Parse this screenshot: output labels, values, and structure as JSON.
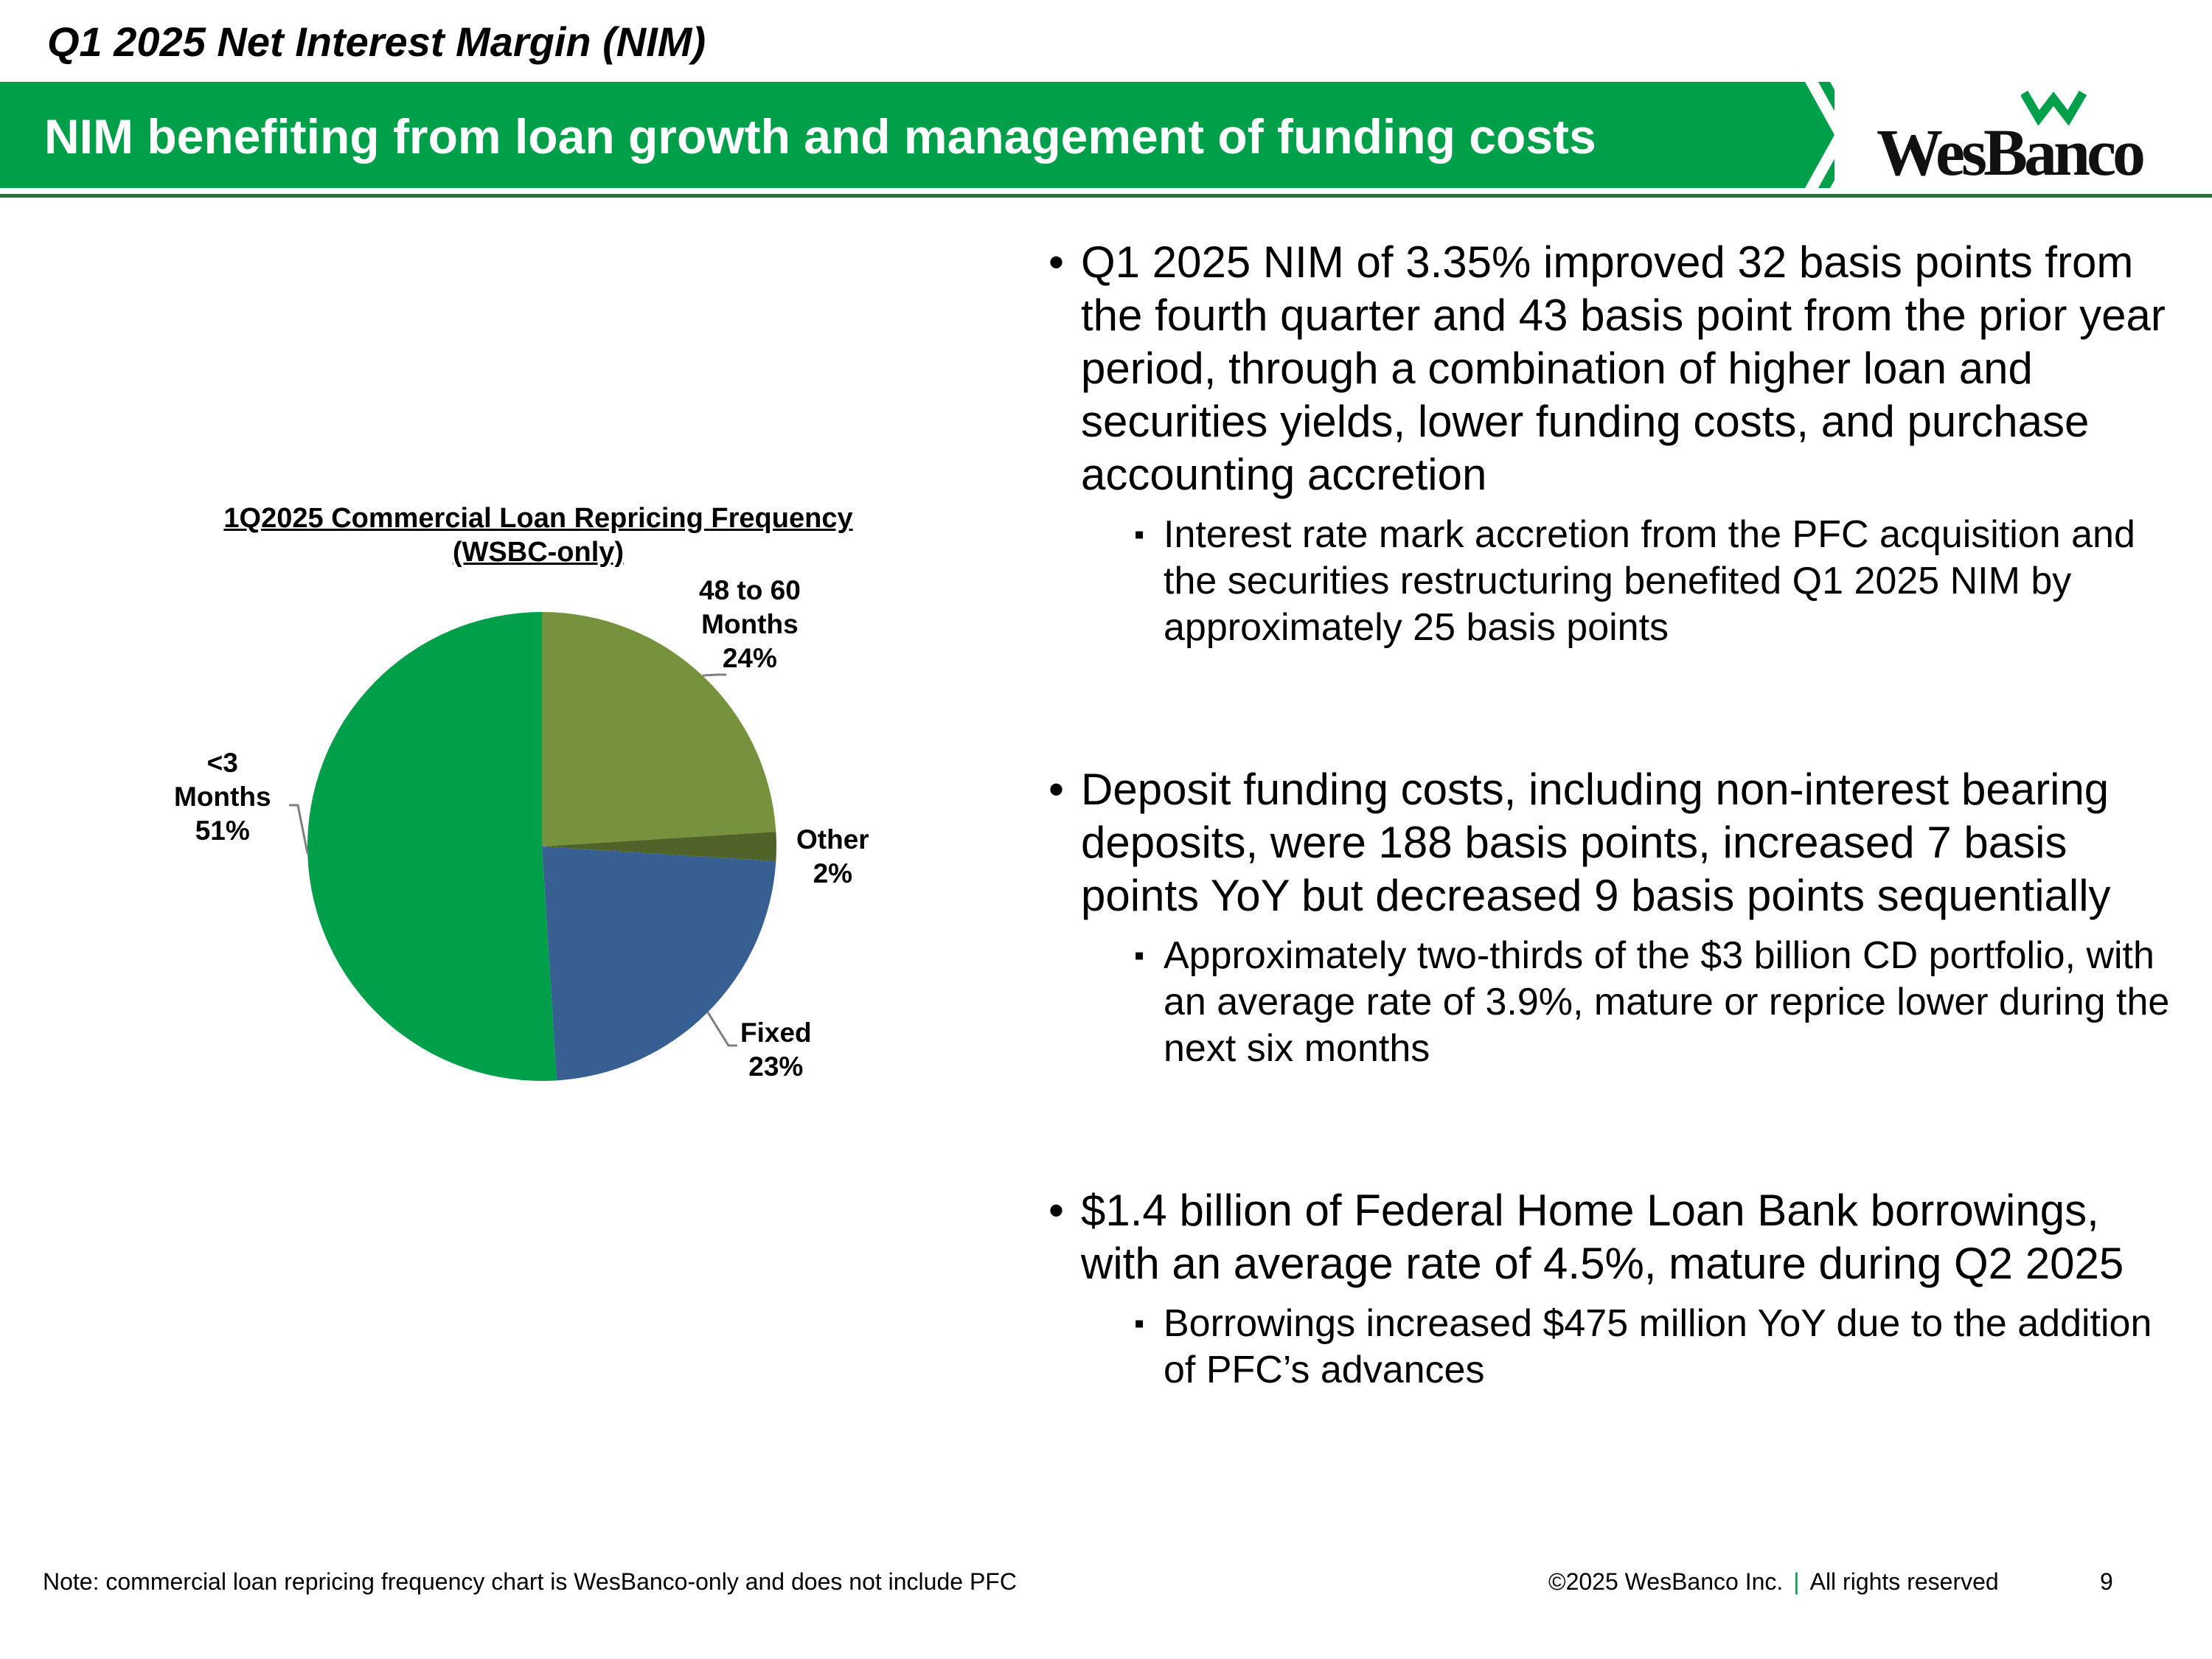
{
  "header": {
    "slide_title": "Q1 2025 Net Interest Margin (NIM)",
    "banner_text": "NIM benefiting from loan growth and management of funding costs",
    "logo_text": "WesBanco",
    "colors": {
      "banner_green": "#00a04b",
      "rule_green": "#1f7a3a"
    }
  },
  "chart": {
    "title_line1": "1Q2025 Commercial Loan Repricing Frequency",
    "title_line2": "(WSBC-only)",
    "labels": [
      {
        "name_lines": [
          "48 to 60",
          "Months"
        ],
        "pct": "24%"
      },
      {
        "name_lines": [
          "Other"
        ],
        "pct": "2%"
      },
      {
        "name_lines": [
          "Fixed"
        ],
        "pct": "23%"
      },
      {
        "name_lines": [
          "<3",
          "Months"
        ],
        "pct": "51%"
      }
    ]
  },
  "chart_data": {
    "type": "pie",
    "title": "1Q2025 Commercial Loan Repricing Frequency (WSBC-only)",
    "categories": [
      "48 to 60 Months",
      "Other",
      "Fixed",
      "<3 Months"
    ],
    "values": [
      24,
      2,
      23,
      51
    ],
    "unit": "%",
    "colors": [
      "#76923c",
      "#4f6228",
      "#375f92",
      "#00a04b"
    ]
  },
  "bullets": [
    {
      "text": "Q1 2025 NIM of 3.35% improved 32 basis points from the fourth quarter and 43 basis point from the prior year period, through a combination of higher loan and securities yields, lower funding costs, and purchase accounting accretion",
      "sub": "Interest rate mark accretion from the PFC acquisition and the securities restructuring benefited Q1 2025 NIM by approximately 25 basis points"
    },
    {
      "text": "Deposit funding costs, including non-interest bearing deposits, were 188 basis points, increased 7 basis points YoY but decreased 9 basis points sequentially",
      "sub": "Approximately two-thirds of the $3 billion CD portfolio, with an average rate of 3.9%, mature or reprice lower during the next six months"
    },
    {
      "text": "$1.4 billion of Federal Home Loan Bank borrowings, with an average rate of 4.5%, mature during Q2 2025",
      "sub": "Borrowings increased $475 million YoY due to the addition of PFC’s advances"
    }
  ],
  "footer": {
    "note": "Note: commercial loan repricing frequency chart is WesBanco-only and does not include PFC",
    "copyright": "©2025 WesBanco Inc.",
    "separator": "|",
    "rights": "All rights reserved",
    "page_number": "9"
  }
}
